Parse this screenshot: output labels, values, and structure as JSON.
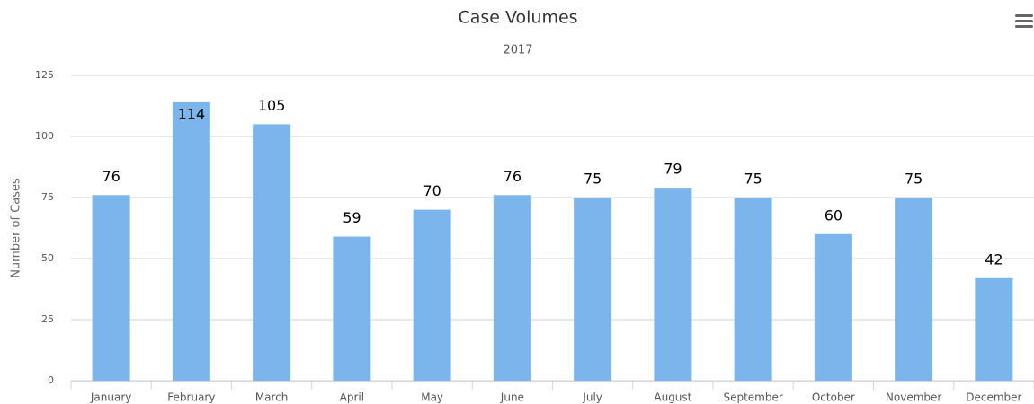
{
  "chart_data": {
    "type": "bar",
    "title": "Case Volumes",
    "subtitle": "2017",
    "y_label": "Number of Cases",
    "categories": [
      "January",
      "February",
      "March",
      "April",
      "May",
      "June",
      "July",
      "August",
      "September",
      "October",
      "November",
      "December"
    ],
    "values": [
      76,
      114,
      105,
      59,
      70,
      76,
      75,
      79,
      75,
      60,
      75,
      42
    ],
    "color": "#7cb5ec",
    "ylim": [
      0,
      125
    ],
    "yticks": [
      0,
      25,
      50,
      75,
      100,
      125
    ],
    "grid": true
  }
}
